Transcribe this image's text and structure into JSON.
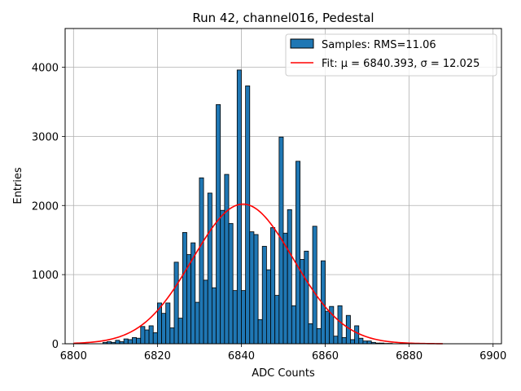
{
  "chart_data": {
    "type": "bar",
    "title": "Run 42, channel016, Pedestal",
    "xlabel": "ADC Counts",
    "ylabel": "Entries",
    "xlim": [
      6798,
      6902
    ],
    "ylim": [
      0,
      4560
    ],
    "xticks": [
      6800,
      6820,
      6840,
      6860,
      6880,
      6900
    ],
    "yticks": [
      0,
      1000,
      2000,
      3000,
      4000
    ],
    "grid": true,
    "legend_position": "top-right",
    "bar_color": "#1f77b4",
    "bar_edge_color": "#000000",
    "fit_color": "#ff0000",
    "bin_start": 6807,
    "bin_width": 1,
    "histogram": {
      "name": "Samples: RMS=11.06",
      "values": [
        20,
        30,
        20,
        50,
        30,
        70,
        60,
        90,
        80,
        250,
        200,
        260,
        160,
        590,
        440,
        590,
        230,
        1180,
        370,
        1610,
        1290,
        1460,
        600,
        2400,
        920,
        2180,
        810,
        3460,
        1930,
        2450,
        1740,
        770,
        3960,
        770,
        3730,
        1620,
        1580,
        350,
        1410,
        1070,
        1680,
        700,
        2990,
        1600,
        1940,
        550,
        2640,
        1220,
        1340,
        290,
        1700,
        220,
        1200,
        470,
        540,
        110,
        550,
        90,
        410,
        60,
        260,
        80,
        40,
        40,
        20,
        10,
        10,
        5,
        5
      ]
    },
    "fit": {
      "name": "Fit: μ = 6840.393, σ = 12.025",
      "mu": 6840.393,
      "sigma": 12.025,
      "amplitude": 2020,
      "x_range": [
        6800,
        6888
      ]
    }
  }
}
